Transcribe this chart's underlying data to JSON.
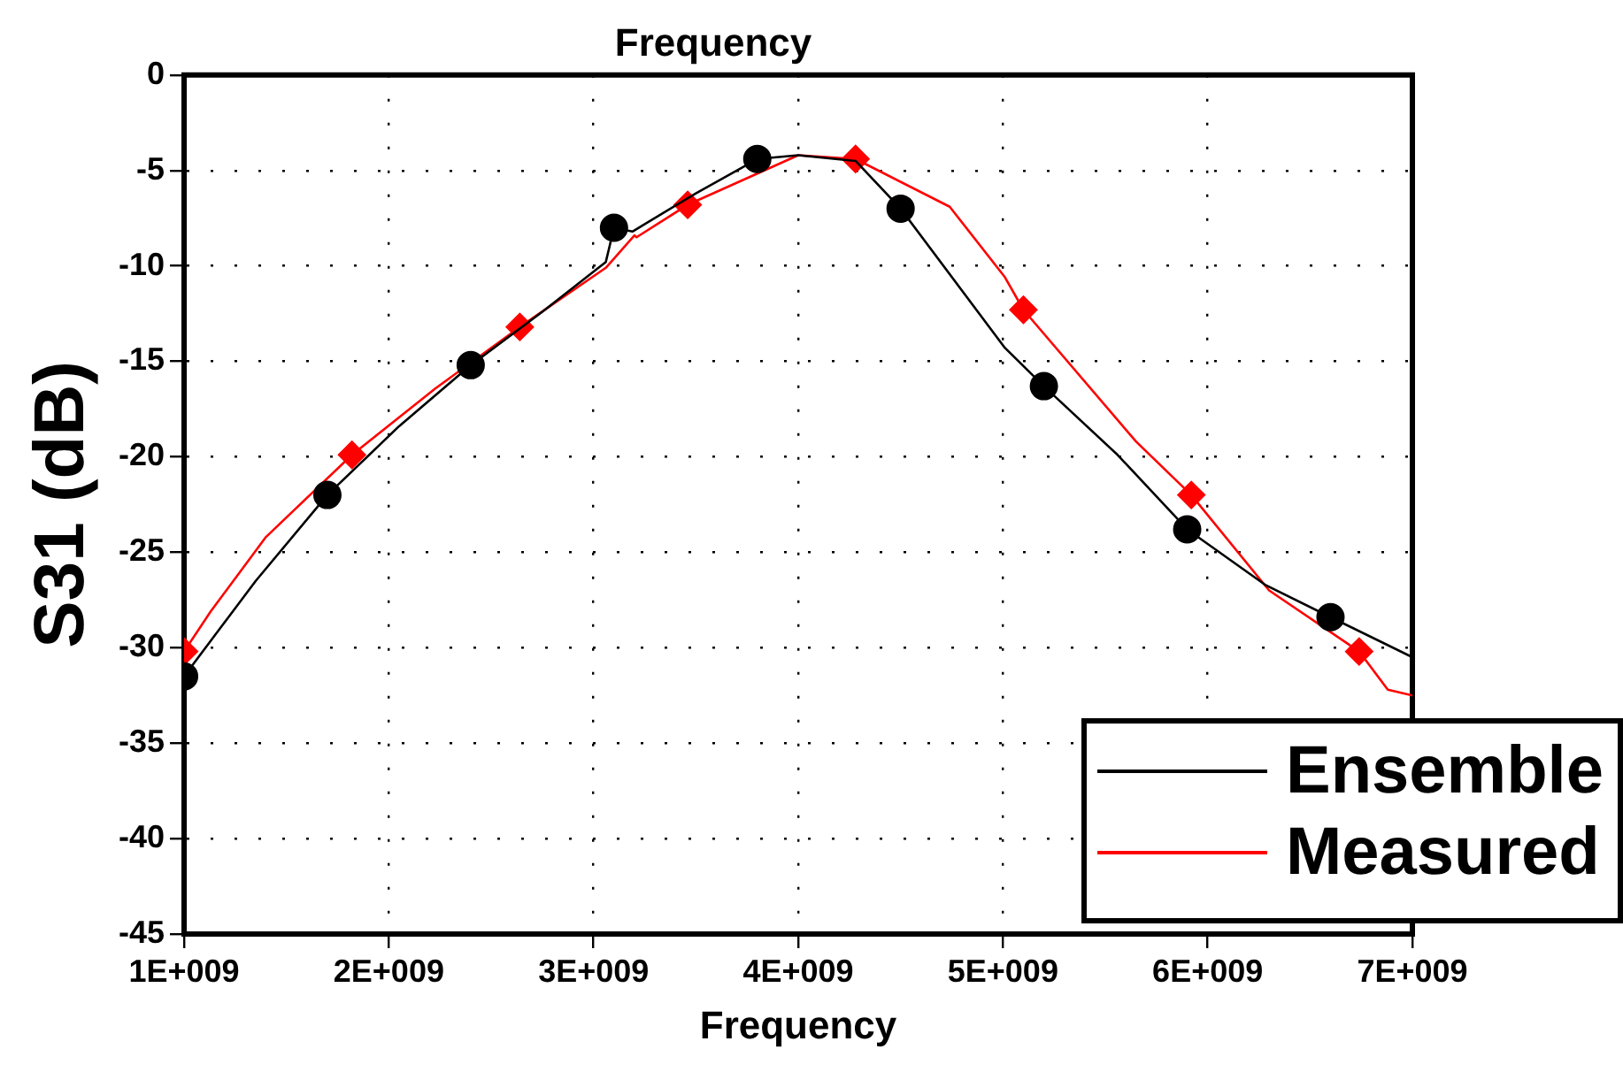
{
  "chart_data": {
    "type": "line",
    "title": "Frequency",
    "xlabel": "Frequency",
    "ylabel": "S31 (dB)",
    "xlim": [
      1000000000.0,
      7000000000.0
    ],
    "xticks": [
      {
        "value": 1000000000.0,
        "label": "1E+009"
      },
      {
        "value": 2000000000.0,
        "label": "2E+009"
      },
      {
        "value": 3000000000.0,
        "label": "3E+009"
      },
      {
        "value": 4000000000.0,
        "label": "4E+009"
      },
      {
        "value": 5000000000.0,
        "label": "5E+009"
      },
      {
        "value": 6000000000.0,
        "label": "6E+009"
      },
      {
        "value": 7000000000.0,
        "label": "7E+009"
      }
    ],
    "ylim": [
      -45,
      0
    ],
    "yticks": [
      0,
      -5,
      -10,
      -15,
      -20,
      -25,
      -30,
      -35,
      -40,
      -45
    ],
    "grid": true,
    "legend": "bottom right",
    "line_style": "solid",
    "series": [
      {
        "name": "Ensemble",
        "color": "#000000",
        "x": [
          1000000000.0,
          1350000000.0,
          1700000000.0,
          2050000000.0,
          2400000000.0,
          2750000000.0,
          3060000000.0,
          3100000000.0,
          3190000000.0,
          3500000000.0,
          3800000000.0,
          4000000000.0,
          4280000000.0,
          4500000000.0,
          5010000000.0,
          5200000000.0,
          5560000000.0,
          5900000000.0,
          6280000000.0,
          6600000000.0,
          7000000000.0
        ],
        "values": [
          -31.5,
          -26.5,
          -22,
          -18.4,
          -15.2,
          -12.4,
          -9.8,
          -8,
          -8.2,
          -6.2,
          -4.4,
          -4.2,
          -4.5,
          -7,
          -14.3,
          -16.3,
          -19.9,
          -23.8,
          -26.7,
          -28.4,
          -30.5
        ]
      },
      {
        "type": "scatter",
        "marker": "circle",
        "color": "#000000",
        "x": [
          1000000000.0,
          1700000000.0,
          2400000000.0,
          3100000000.0,
          3800000000.0,
          4500000000.0,
          5200000000.0,
          5900000000.0,
          6600000000.0
        ],
        "values": [
          -31.5,
          -22,
          -15.2,
          -8,
          -4.4,
          -7,
          -16.3,
          -23.8,
          -28.4
        ]
      },
      {
        "name": "Measured",
        "color": "#ff0000",
        "x": [
          1000000000.0,
          1130000000.0,
          1400000000.0,
          1820000000.0,
          2230000000.0,
          2640000000.0,
          3060000000.0,
          3200000000.0,
          3210000000.0,
          3460000000.0,
          4000000000.0,
          4280000000.0,
          4740000000.0,
          5010000000.0,
          5100000000.0,
          5650000000.0,
          5920000000.0,
          6300000000.0,
          6740000000.0,
          6880000000.0,
          7000000000.0
        ],
        "values": [
          -30.2,
          -28.1,
          -24.2,
          -19.9,
          -16.4,
          -13.2,
          -10.1,
          -8.4,
          -8.5,
          -6.8,
          -4.2,
          -4.4,
          -6.9,
          -10.6,
          -12.3,
          -19.2,
          -22,
          -27,
          -30.2,
          -32.2,
          -32.5
        ]
      },
      {
        "type": "scatter",
        "marker": "diamond",
        "color": "#ff0000",
        "x": [
          1000000000.0,
          1820000000.0,
          2640000000.0,
          3460000000.0,
          4280000000.0,
          5100000000.0,
          5920000000.0,
          6740000000.0
        ],
        "values": [
          -30.2,
          -19.9,
          -13.2,
          -6.8,
          -4.4,
          -12.3,
          -22,
          -30.2
        ]
      }
    ]
  }
}
